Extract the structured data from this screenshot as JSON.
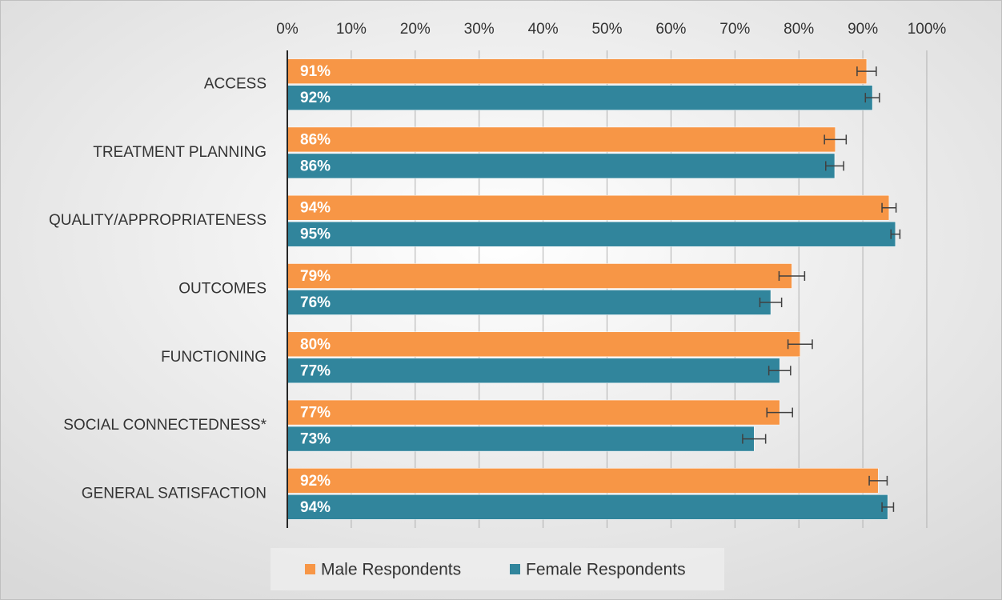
{
  "chart_data": {
    "type": "hbar",
    "categories": [
      "ACCESS",
      "TREATMENT PLANNING",
      "QUALITY/APPROPRIATENESS",
      "OUTCOMES",
      "FUNCTIONING",
      "SOCIAL CONNECTEDNESS*",
      "GENERAL SATISFACTION"
    ],
    "series": [
      {
        "name": "Male Respondents",
        "color": "#f79646",
        "values": [
          90.6,
          85.7,
          94.1,
          78.9,
          80.2,
          77.0,
          92.4
        ],
        "value_labels": [
          "91%",
          "86%",
          "94%",
          "79%",
          "80%",
          "77%",
          "92%"
        ],
        "errors": [
          1.5,
          1.7,
          1.1,
          2.0,
          1.9,
          2.0,
          1.4
        ]
      },
      {
        "name": "Female Respondents",
        "color": "#31859c",
        "values": [
          91.5,
          85.6,
          95.1,
          75.6,
          77.0,
          73.0,
          93.9
        ],
        "value_labels": [
          "92%",
          "86%",
          "95%",
          "76%",
          "77%",
          "73%",
          "94%"
        ],
        "errors": [
          1.1,
          1.4,
          0.7,
          1.7,
          1.7,
          1.8,
          0.9
        ]
      }
    ],
    "xlim": [
      0,
      100
    ],
    "xticks": [
      {
        "value": 0,
        "label": "0%"
      },
      {
        "value": 10,
        "label": "10%"
      },
      {
        "value": 20,
        "label": "20%"
      },
      {
        "value": 30,
        "label": "30%"
      },
      {
        "value": 40,
        "label": "40%"
      },
      {
        "value": 50,
        "label": "50%"
      },
      {
        "value": 60,
        "label": "60%"
      },
      {
        "value": 70,
        "label": "70%"
      },
      {
        "value": 80,
        "label": "80%"
      },
      {
        "value": 90,
        "label": "90%"
      },
      {
        "value": 100,
        "label": "100%"
      }
    ],
    "grid": true,
    "legend": "bottom"
  }
}
